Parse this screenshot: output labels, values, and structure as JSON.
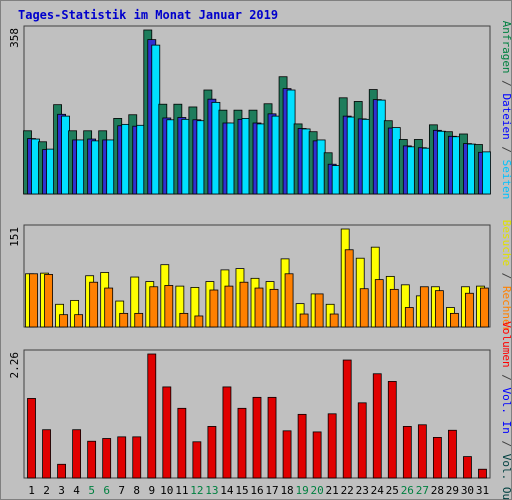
{
  "chart_data": {
    "type": "bar",
    "title": "Tages-Statistik im Monat Januar 2019",
    "categories": [
      "1",
      "2",
      "3",
      "4",
      "5",
      "6",
      "7",
      "8",
      "9",
      "10",
      "11",
      "12",
      "13",
      "14",
      "15",
      "16",
      "17",
      "18",
      "19",
      "20",
      "21",
      "22",
      "23",
      "24",
      "25",
      "26",
      "27",
      "28",
      "29",
      "30",
      "31"
    ],
    "weekend_days": [
      "5",
      "6",
      "12",
      "13",
      "19",
      "20",
      "26",
      "27"
    ],
    "panels": [
      {
        "name": "top",
        "ylabel_max": "358",
        "ymax": 358,
        "right_label": [
          {
            "text": "Anfragen",
            "color": "#008040"
          },
          {
            "text": " / ",
            "color": "#404040"
          },
          {
            "text": "Dateien",
            "color": "#0000ff"
          },
          {
            "text": " / ",
            "color": "#404040"
          },
          {
            "text": "Seiten",
            "color": "#00c0ff"
          }
        ],
        "series": [
          {
            "name": "Anfragen",
            "color": "#1e7d5c",
            "values": [
              138,
              114,
              195,
              138,
              138,
              138,
              165,
              173,
              358,
              196,
              196,
              190,
              227,
              183,
              183,
              183,
              197,
              256,
              153,
              136,
              90,
              210,
              202,
              228,
              160,
              119,
              119,
              151,
              136,
              131,
              108
            ]
          },
          {
            "name": "Dateien",
            "color": "#3030d0",
            "values": [
              121,
              97,
              174,
              118,
              120,
              118,
              149,
              148,
              337,
              166,
              167,
              162,
              207,
              155,
              163,
              155,
              175,
              230,
              143,
              116,
              65,
              170,
              164,
              206,
              144,
              105,
              101,
              139,
              126,
              110,
              91
            ]
          },
          {
            "name": "Seiten",
            "color": "#00e0ff",
            "values": [
              120,
              98,
              170,
              118,
              116,
              118,
              152,
              150,
              325,
              162,
              163,
              160,
              200,
              155,
              165,
              153,
              170,
              227,
              142,
              118,
              62,
              168,
              163,
              205,
              145,
              103,
              100,
              137,
              125,
              109,
              92
            ]
          }
        ]
      },
      {
        "name": "middle",
        "ylabel_max": "151",
        "ymax": 151,
        "right_label": [
          {
            "text": "Besuche",
            "color": "#e0e000"
          },
          {
            "text": " / ",
            "color": "#404040"
          },
          {
            "text": "Rechner",
            "color": "#ff8000"
          }
        ],
        "series": [
          {
            "name": "Besuche",
            "color": "#ffff00",
            "values": [
              82,
              83,
              35,
              41,
              79,
              84,
              40,
              77,
              70,
              96,
              63,
              61,
              70,
              88,
              90,
              75,
              70,
              105,
              36,
              51,
              35,
              151,
              106,
              123,
              78,
              65,
              48,
              62,
              30,
              62,
              63
            ]
          },
          {
            "name": "Rechner",
            "color": "#ff8000",
            "values": [
              82,
              81,
              19,
              19,
              69,
              60,
              21,
              21,
              62,
              64,
              21,
              17,
              57,
              63,
              69,
              60,
              58,
              82,
              20,
              51,
              20,
              119,
              59,
              73,
              58,
              30,
              62,
              56,
              21,
              52,
              60
            ]
          }
        ]
      },
      {
        "name": "bottom",
        "ylabel_max": "2.26",
        "ymax": 2.26,
        "right_label": [
          {
            "text": "Volumen",
            "color": "#ff0000"
          },
          {
            "text": " / ",
            "color": "#404040"
          },
          {
            "text": "Vol. In",
            "color": "#0000ff"
          },
          {
            "text": " / ",
            "color": "#404040"
          },
          {
            "text": "Vol. Out",
            "color": "#004040"
          }
        ],
        "series": [
          {
            "name": "Volumen",
            "color": "#e00000",
            "values": [
              1.45,
              0.88,
              0.25,
              0.88,
              0.67,
              0.72,
              0.75,
              0.75,
              2.26,
              1.66,
              1.27,
              0.66,
              0.94,
              1.66,
              1.27,
              1.47,
              1.47,
              0.86,
              1.16,
              0.84,
              1.17,
              2.15,
              1.37,
              1.9,
              1.76,
              0.94,
              0.97,
              0.74,
              0.87,
              0.39,
              0.16
            ]
          }
        ]
      }
    ]
  }
}
